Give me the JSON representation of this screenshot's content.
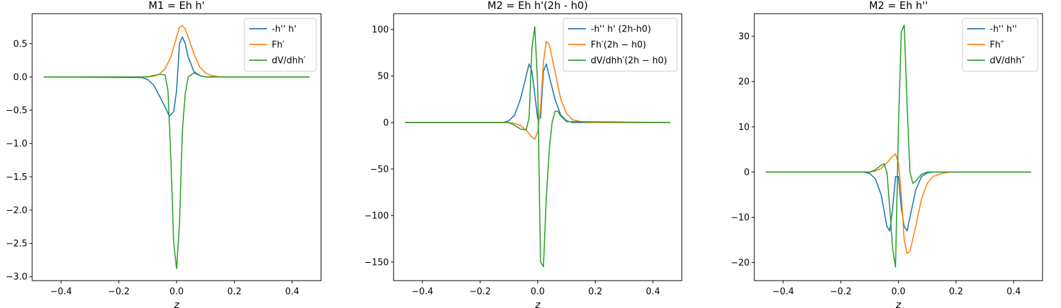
{
  "chart_data": [
    {
      "type": "line",
      "title": "M1 = Eh h'",
      "xlabel": "z",
      "ylabel": "",
      "xlim": [
        -0.5,
        0.5
      ],
      "ylim": [
        -3.06,
        0.95
      ],
      "xticks": [
        -0.4,
        -0.2,
        0.0,
        0.2,
        0.4
      ],
      "xtick_labels": [
        "−0.4",
        "−0.2",
        "0.0",
        "0.2",
        "0.4"
      ],
      "yticks": [
        -3.0,
        -2.5,
        -2.0,
        -1.5,
        -1.0,
        -0.5,
        0.0,
        0.5
      ],
      "ytick_labels": [
        "−3.0",
        "−2.5",
        "−2.0",
        "−1.5",
        "−1.0",
        "−0.5",
        "0.0",
        "0.5"
      ],
      "legend_position": "top-right",
      "series": [
        {
          "name": "-h'' h'",
          "color": "#1f77b4",
          "x": [
            -0.46,
            -0.12,
            -0.1,
            -0.08,
            -0.06,
            -0.04,
            -0.025,
            -0.01,
            0.0,
            0.01,
            0.02,
            0.03,
            0.04,
            0.06,
            0.08,
            0.1,
            0.46
          ],
          "y": [
            0.0,
            -0.01,
            -0.04,
            -0.12,
            -0.28,
            -0.45,
            -0.59,
            -0.52,
            -0.2,
            0.5,
            0.6,
            0.5,
            0.3,
            0.08,
            0.02,
            0.0,
            0.0
          ]
        },
        {
          "name": "Fh′",
          "color": "#ff7f0e",
          "x": [
            -0.46,
            -0.12,
            -0.08,
            -0.06,
            -0.04,
            -0.02,
            0.0,
            0.01,
            0.02,
            0.03,
            0.04,
            0.06,
            0.08,
            0.1,
            0.12,
            0.15,
            0.46
          ],
          "y": [
            0.0,
            0.0,
            0.01,
            0.04,
            0.12,
            0.3,
            0.6,
            0.75,
            0.77,
            0.72,
            0.6,
            0.35,
            0.15,
            0.06,
            0.02,
            0.0,
            0.0
          ]
        },
        {
          "name": "dV/dhh′",
          "color": "#2ca02c",
          "x": [
            -0.46,
            -0.1,
            -0.08,
            -0.06,
            -0.04,
            -0.03,
            -0.02,
            -0.01,
            0.0,
            0.01,
            0.02,
            0.03,
            0.04,
            0.06,
            0.08,
            0.1,
            0.46
          ],
          "y": [
            0.0,
            0.0,
            0.02,
            0.04,
            0.03,
            -0.2,
            -1.2,
            -2.5,
            -2.88,
            -2.2,
            -0.8,
            -0.25,
            0.0,
            0.06,
            0.02,
            0.0,
            0.0
          ]
        }
      ]
    },
    {
      "type": "line",
      "title": "M2 = Eh h'(2h - h0)",
      "xlabel": "z",
      "ylabel": "",
      "xlim": [
        -0.5,
        0.5
      ],
      "ylim": [
        -170,
        117
      ],
      "xticks": [
        -0.4,
        -0.2,
        0.0,
        0.2,
        0.4
      ],
      "xtick_labels": [
        "−0.4",
        "−0.2",
        "0.0",
        "0.2",
        "0.4"
      ],
      "yticks": [
        -150,
        -100,
        -50,
        0,
        50,
        100
      ],
      "ytick_labels": [
        "−150",
        "−100",
        "−50",
        "0",
        "50",
        "100"
      ],
      "legend_position": "top-right",
      "series": [
        {
          "name": "-h'' h' (2h-h0)",
          "color": "#1f77b4",
          "x": [
            -0.46,
            -0.12,
            -0.1,
            -0.08,
            -0.06,
            -0.04,
            -0.03,
            -0.02,
            -0.01,
            0.0,
            0.01,
            0.02,
            0.03,
            0.04,
            0.06,
            0.08,
            0.1,
            0.12,
            0.46
          ],
          "y": [
            0.0,
            0.0,
            2,
            8,
            25,
            50,
            63,
            55,
            30,
            4,
            5,
            55,
            63,
            50,
            25,
            8,
            2,
            0,
            0
          ]
        },
        {
          "name": "Fh′(2h − h0)",
          "color": "#ff7f0e",
          "x": [
            -0.46,
            -0.1,
            -0.08,
            -0.06,
            -0.04,
            -0.02,
            -0.01,
            0.0,
            0.01,
            0.02,
            0.03,
            0.04,
            0.06,
            0.08,
            0.1,
            0.12,
            0.15,
            0.18,
            0.46
          ],
          "y": [
            0.0,
            0.0,
            -1,
            -3,
            -8,
            -16,
            -18,
            -10,
            15,
            65,
            87,
            84,
            55,
            25,
            10,
            3,
            1,
            0,
            0
          ]
        },
        {
          "name": "dV/dhh′(2h − h0)",
          "color": "#2ca02c",
          "x": [
            -0.46,
            -0.1,
            -0.08,
            -0.06,
            -0.04,
            -0.03,
            -0.02,
            -0.01,
            0.0,
            0.01,
            0.02,
            0.03,
            0.04,
            0.05,
            0.06,
            0.07,
            0.08,
            0.1,
            0.46
          ],
          "y": [
            0.0,
            0.0,
            -3,
            -7,
            -8,
            5,
            80,
            103,
            40,
            -150,
            -155,
            -80,
            -30,
            0,
            12,
            12,
            7,
            1,
            0
          ]
        }
      ]
    },
    {
      "type": "line",
      "title": "M2 = Eh h''",
      "xlabel": "z",
      "ylabel": "",
      "xlim": [
        -0.5,
        0.5
      ],
      "ylim": [
        -24,
        35
      ],
      "xticks": [
        -0.4,
        -0.2,
        0.0,
        0.2,
        0.4
      ],
      "xtick_labels": [
        "−0.4",
        "−0.2",
        "0.0",
        "0.2",
        "0.4"
      ],
      "yticks": [
        -20,
        -10,
        0,
        10,
        20,
        30
      ],
      "ytick_labels": [
        "−20",
        "−10",
        "0",
        "10",
        "20",
        "30"
      ],
      "legend_position": "top-right",
      "series": [
        {
          "name": "-h'' h''",
          "color": "#1f77b4",
          "x": [
            -0.46,
            -0.12,
            -0.1,
            -0.08,
            -0.06,
            -0.04,
            -0.03,
            -0.02,
            -0.01,
            0.0,
            0.01,
            0.02,
            0.03,
            0.04,
            0.06,
            0.08,
            0.1,
            0.12,
            0.46
          ],
          "y": [
            0,
            0,
            -0.3,
            -1.5,
            -5,
            -12,
            -13,
            -8,
            -1,
            -1,
            -8,
            -12,
            -13,
            -10,
            -4,
            -1,
            -0.2,
            0,
            0
          ]
        },
        {
          "name": "Fh″",
          "color": "#ff7f0e",
          "x": [
            -0.46,
            -0.1,
            -0.08,
            -0.06,
            -0.04,
            -0.02,
            -0.01,
            0.0,
            0.01,
            0.02,
            0.03,
            0.04,
            0.06,
            0.08,
            0.1,
            0.12,
            0.15,
            0.18,
            0.46
          ],
          "y": [
            0,
            0,
            0.2,
            0.8,
            2,
            3.5,
            4,
            2,
            -5,
            -15,
            -18,
            -17.5,
            -12,
            -6,
            -2.5,
            -1,
            -0.3,
            0,
            0
          ]
        },
        {
          "name": "dV/dhh″",
          "color": "#2ca02c",
          "x": [
            -0.46,
            -0.1,
            -0.08,
            -0.06,
            -0.05,
            -0.04,
            -0.03,
            -0.02,
            -0.01,
            0.0,
            0.01,
            0.02,
            0.03,
            0.04,
            0.05,
            0.06,
            0.08,
            0.1,
            0.46
          ],
          "y": [
            0,
            0,
            0.5,
            1.5,
            1.8,
            0,
            -8,
            -17,
            -21,
            10,
            31,
            32.5,
            15,
            0,
            -2.5,
            -2,
            -0.5,
            0,
            0
          ]
        }
      ]
    }
  ],
  "layout_panels": "three panels side by side, shared styling"
}
